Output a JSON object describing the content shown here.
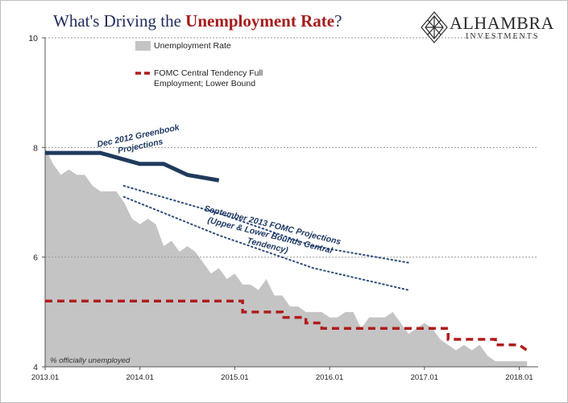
{
  "header": {
    "title_prefix": "What's Driving the ",
    "title_emphasis": "Unemployment Rate",
    "title_suffix": "?"
  },
  "logo": {
    "name": "ALHAMBRA",
    "subtitle": "INVESTMENTS",
    "icon": "diamond-lattice-icon"
  },
  "colors": {
    "area": "#c4c4c4",
    "fomc_lower": "#b01c1c",
    "greenbook": "#1f3a5c",
    "fomc_projection": "#2c4a7c",
    "title": "#1f2a5c",
    "title_emphasis": "#a51c1c"
  },
  "chart_data": {
    "type": "area",
    "ylim": [
      4,
      10
    ],
    "yticks": [
      "4",
      "6",
      "8",
      "10"
    ],
    "xticks": [
      {
        "label": "2013.01",
        "t": 2013.0
      },
      {
        "label": "2014.01",
        "t": 2014.0
      },
      {
        "label": "2015.01",
        "t": 2015.0
      },
      {
        "label": "2016.01",
        "t": 2016.0
      },
      {
        "label": "2017.01",
        "t": 2017.0
      },
      {
        "label": "2018.01",
        "t": 2018.0
      }
    ],
    "xlim": [
      2013.0,
      2018.2
    ],
    "grid_y": true,
    "series": [
      {
        "name": "Unemployment Rate",
        "style": "area",
        "x": [
          2013.0,
          2013.083,
          2013.167,
          2013.25,
          2013.333,
          2013.417,
          2013.5,
          2013.583,
          2013.667,
          2013.75,
          2013.833,
          2013.917,
          2014.0,
          2014.083,
          2014.167,
          2014.25,
          2014.333,
          2014.417,
          2014.5,
          2014.583,
          2014.667,
          2014.75,
          2014.833,
          2014.917,
          2015.0,
          2015.083,
          2015.167,
          2015.25,
          2015.333,
          2015.417,
          2015.5,
          2015.583,
          2015.667,
          2015.75,
          2015.833,
          2015.917,
          2016.0,
          2016.083,
          2016.167,
          2016.25,
          2016.333,
          2016.417,
          2016.5,
          2016.583,
          2016.667,
          2016.75,
          2016.833,
          2016.917,
          2017.0,
          2017.083,
          2017.167,
          2017.25,
          2017.333,
          2017.417,
          2017.5,
          2017.583,
          2017.667,
          2017.75,
          2017.833,
          2017.917,
          2018.0,
          2018.083
        ],
        "values": [
          8.0,
          7.7,
          7.5,
          7.6,
          7.5,
          7.5,
          7.3,
          7.2,
          7.2,
          7.2,
          7.0,
          6.7,
          6.6,
          6.7,
          6.6,
          6.2,
          6.3,
          6.1,
          6.2,
          6.1,
          5.9,
          5.7,
          5.8,
          5.6,
          5.7,
          5.5,
          5.5,
          5.4,
          5.6,
          5.3,
          5.3,
          5.1,
          5.1,
          5.0,
          5.0,
          5.0,
          4.9,
          4.9,
          5.0,
          5.0,
          4.7,
          4.9,
          4.9,
          4.9,
          5.0,
          4.8,
          4.6,
          4.7,
          4.8,
          4.7,
          4.5,
          4.4,
          4.3,
          4.4,
          4.3,
          4.4,
          4.2,
          4.1,
          4.1,
          4.1,
          4.1,
          4.1
        ]
      },
      {
        "name": "FOMC Central Tendency Full Employment; Lower Bound",
        "style": "dashed-step",
        "points": [
          [
            2013.0,
            5.2
          ],
          [
            2014.0,
            5.2
          ],
          [
            2015.0,
            5.2
          ],
          [
            2015.083,
            5.2
          ],
          [
            2015.083,
            5.0
          ],
          [
            2015.5,
            5.0
          ],
          [
            2015.5,
            4.9
          ],
          [
            2015.75,
            4.9
          ],
          [
            2015.75,
            4.8
          ],
          [
            2015.917,
            4.8
          ],
          [
            2015.917,
            4.7
          ],
          [
            2017.25,
            4.7
          ],
          [
            2017.25,
            4.5
          ],
          [
            2017.75,
            4.5
          ],
          [
            2017.75,
            4.4
          ],
          [
            2018.0,
            4.4
          ],
          [
            2018.083,
            4.3
          ]
        ]
      },
      {
        "style": "thick-line",
        "points": [
          [
            2013.0,
            7.9
          ],
          [
            2013.583,
            7.9
          ],
          [
            2014.0,
            7.7
          ],
          [
            2014.25,
            7.7
          ],
          [
            2014.5,
            7.5
          ],
          [
            2014.833,
            7.4
          ]
        ]
      },
      {
        "style": "dotted-line",
        "points": [
          [
            2013.83,
            7.3
          ],
          [
            2014.83,
            6.8
          ],
          [
            2015.83,
            6.2
          ],
          [
            2016.83,
            5.9
          ]
        ]
      },
      {
        "style": "dotted-line",
        "points": [
          [
            2013.83,
            7.1
          ],
          [
            2014.83,
            6.4
          ],
          [
            2015.83,
            5.8
          ],
          [
            2016.83,
            5.4
          ]
        ]
      }
    ],
    "legend": [
      {
        "label": "Unemployment Rate",
        "style": "area"
      },
      {
        "label": "FOMC Central Tendency Full Employment; Lower Bound",
        "style": "dashed"
      }
    ],
    "annotations": {
      "greenbook": "Dec 2012 Greenbook Projections",
      "september": "September 2013 FOMC Projections (Upper & Lower Bounds Central Tendency)",
      "note": "% officially unemployed"
    }
  }
}
